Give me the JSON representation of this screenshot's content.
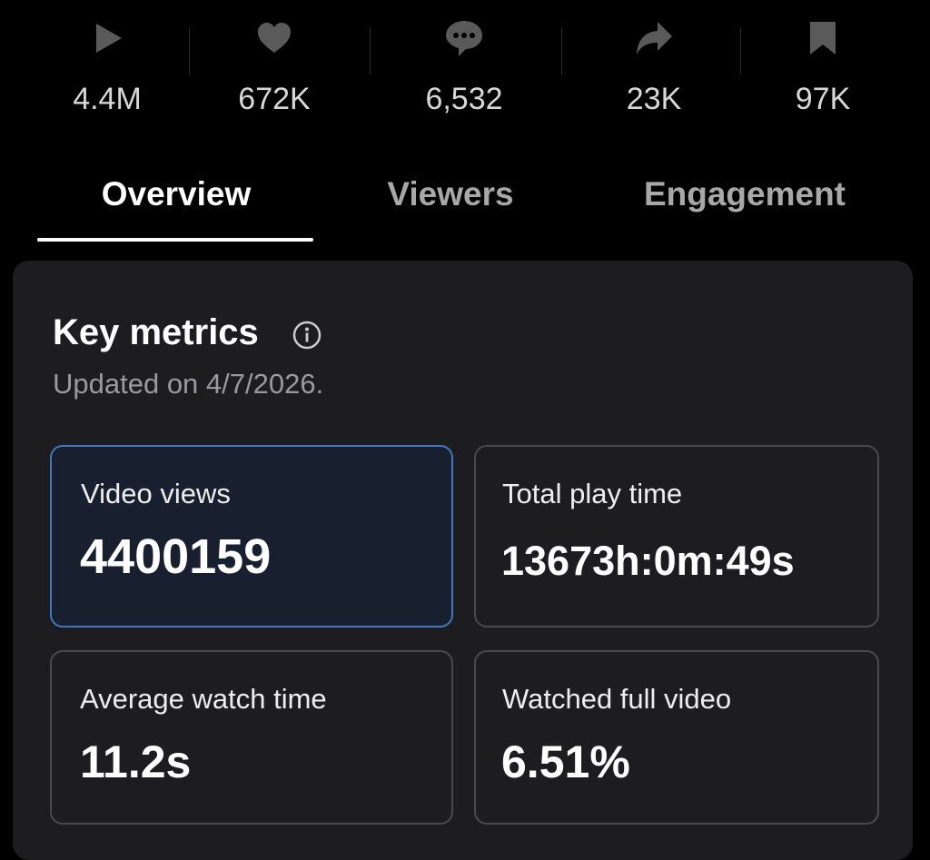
{
  "stats": [
    {
      "icon": "play",
      "label": "4.4M"
    },
    {
      "icon": "heart",
      "label": "672K"
    },
    {
      "icon": "comment",
      "label": "6,532"
    },
    {
      "icon": "share",
      "label": "23K"
    },
    {
      "icon": "bookmark",
      "label": "97K"
    }
  ],
  "tabs": [
    "Overview",
    "Viewers",
    "Engagement"
  ],
  "key_metrics": {
    "title": "Key metrics",
    "updated": "Updated on 4/7/2026.",
    "metrics": [
      {
        "label": "Video views",
        "value": "4400159"
      },
      {
        "label": "Total play time",
        "value": "13673h:0m:49s"
      },
      {
        "label": "Average watch time",
        "value": "11.2s"
      },
      {
        "label": "Watched full video",
        "value": "6.51%"
      }
    ]
  }
}
